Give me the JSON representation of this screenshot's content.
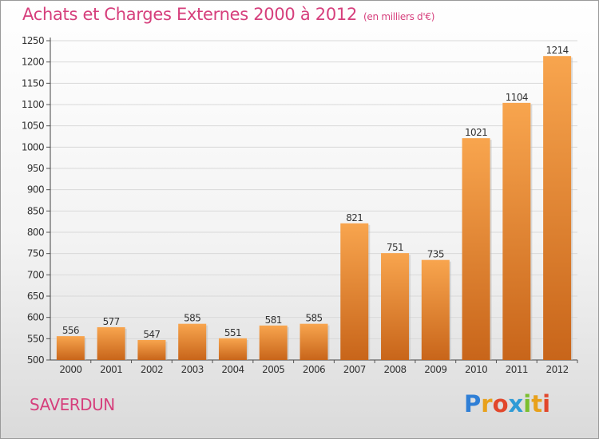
{
  "header": {
    "title": "Achats et Charges Externes 2000 à 2012",
    "subtitle": "(en milliers d'€)"
  },
  "footer": {
    "commune": "SAVERDUN",
    "logo_text": "Proxiti"
  },
  "colors": {
    "title": "#d63f7c",
    "bar_light": "#f8a54e",
    "bar_dark": "#c8651a",
    "grid": "#d9d9d9"
  },
  "chart_data": {
    "type": "bar",
    "title": "Achats et Charges Externes 2000 à 2012",
    "subtitle": "(en milliers d'€)",
    "categories": [
      "2000",
      "2001",
      "2002",
      "2003",
      "2004",
      "2005",
      "2006",
      "2007",
      "2008",
      "2009",
      "2010",
      "2011",
      "2012"
    ],
    "values": [
      556,
      577,
      547,
      585,
      551,
      581,
      585,
      821,
      751,
      735,
      1021,
      1104,
      1214
    ],
    "value_labels": [
      "556",
      "577",
      "547",
      "585",
      "551",
      "581",
      "585",
      "821",
      "751",
      "735",
      "1021",
      "1104",
      "1214"
    ],
    "ylim": [
      500,
      1250
    ],
    "yticks": [
      500,
      550,
      600,
      650,
      700,
      750,
      800,
      850,
      900,
      950,
      1000,
      1050,
      1100,
      1150,
      1200,
      1250
    ],
    "xlabel": "",
    "ylabel": "",
    "grid": true,
    "legend": "none"
  }
}
